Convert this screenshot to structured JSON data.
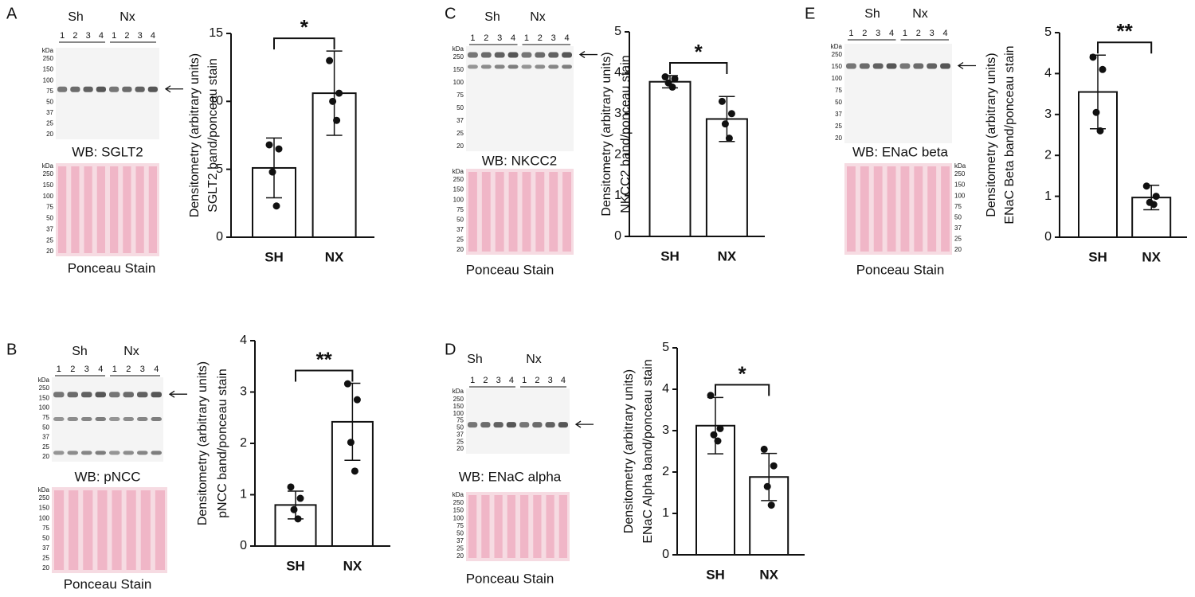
{
  "chart_data": [
    {
      "type": "bar",
      "ylabel": [
        "Densitometry (arbitrary units)",
        "SGLT2 band/ponceau stain"
      ],
      "categories": [
        "SH",
        "NX"
      ],
      "values": [
        5.1,
        10.6
      ],
      "errors": [
        2.2,
        3.1
      ],
      "points": [
        [
          6.8,
          6.5,
          4.8,
          2.3
        ],
        [
          13.0,
          10.6,
          10.0,
          8.6
        ]
      ],
      "significance": "*",
      "color": "#ffffff",
      "ylim": [
        0,
        15
      ],
      "yticks": [
        0,
        5,
        10,
        15
      ]
    },
    {
      "type": "bar",
      "ylabel": [
        "Densitometry (arbitrary units)",
        "pNCC band/ponceau stain"
      ],
      "categories": [
        "SH",
        "NX"
      ],
      "values": [
        0.8,
        2.42
      ],
      "errors": [
        0.27,
        0.75
      ],
      "points": [
        [
          1.15,
          0.93,
          0.71,
          0.53
        ],
        [
          3.16,
          2.85,
          2.02,
          1.46
        ]
      ],
      "significance": "**",
      "color": "#ffffff",
      "ylim": [
        0,
        4
      ],
      "yticks": [
        0,
        1,
        2,
        3,
        4
      ]
    },
    {
      "type": "bar",
      "ylabel": [
        "Densitometry (arbitrary units)",
        "NKCC2 band/ponceau stain"
      ],
      "categories": [
        "SH",
        "NX"
      ],
      "values": [
        3.78,
        2.87
      ],
      "errors": [
        0.15,
        0.55
      ],
      "points": [
        [
          3.9,
          3.85,
          3.75,
          3.65
        ],
        [
          3.3,
          3.0,
          2.75,
          2.4
        ]
      ],
      "significance": "*",
      "color": "#ffffff",
      "ylim": [
        0,
        5
      ],
      "yticks": [
        0,
        1,
        2,
        3,
        4,
        5
      ]
    },
    {
      "type": "bar",
      "ylabel": [
        "Densitometry (arbitrary units)",
        "ENaC Alpha  band/ponceau stain"
      ],
      "categories": [
        "SH",
        "NX"
      ],
      "values": [
        3.12,
        1.88
      ],
      "errors": [
        0.68,
        0.57
      ],
      "points": [
        [
          3.85,
          3.05,
          2.9,
          2.75
        ],
        [
          2.55,
          2.15,
          1.65,
          1.2
        ]
      ],
      "significance": "*",
      "color": "#ffffff",
      "ylim": [
        0,
        5
      ],
      "yticks": [
        0,
        1,
        2,
        3,
        4,
        5
      ]
    },
    {
      "type": "bar",
      "ylabel": [
        "Densitometry (arbitrary units)",
        "ENaC Beta  band/ponceau stain"
      ],
      "categories": [
        "SH",
        "NX"
      ],
      "values": [
        3.55,
        0.97
      ],
      "errors": [
        0.9,
        0.3
      ],
      "points": [
        [
          4.4,
          4.1,
          3.05,
          2.6
        ],
        [
          1.25,
          1.0,
          0.85,
          0.8
        ]
      ],
      "significance": "**",
      "color": "#ffffff",
      "ylim": [
        0,
        5
      ],
      "yticks": [
        0,
        1,
        2,
        3,
        4,
        5
      ]
    }
  ],
  "blots": [
    {
      "panel": "A",
      "groups": [
        "Sh",
        "Nx"
      ],
      "lanes": [
        "1",
        "2",
        "3",
        "4",
        "1",
        "2",
        "3",
        "4"
      ],
      "kda": "kDa",
      "markers": [
        "250",
        "150",
        "100",
        "75",
        "50",
        "37",
        "25",
        "20"
      ],
      "wb": "WB: SGLT2",
      "ponceau_kda": "kDa",
      "ponceau_markers": [
        "250",
        "150",
        "100",
        "75",
        "50",
        "37",
        "25",
        "20"
      ],
      "ponceau": "Ponceau Stain"
    },
    {
      "panel": "B",
      "groups": [
        "Sh",
        "Nx"
      ],
      "lanes": [
        "1",
        "2",
        "3",
        "4",
        "1",
        "2",
        "3",
        "4"
      ],
      "kda": "kDa",
      "markers": [
        "250",
        "150",
        "100",
        "75",
        "50",
        "37",
        "25",
        "20"
      ],
      "wb": "WB: pNCC",
      "ponceau_kda": "kDa",
      "ponceau_markers": [
        "250",
        "150",
        "100",
        "75",
        "50",
        "37",
        "25",
        "20"
      ],
      "ponceau": "Ponceau Stain"
    },
    {
      "panel": "C",
      "groups": [
        "Sh",
        "Nx"
      ],
      "lanes": [
        "1",
        "2",
        "3",
        "4",
        "1",
        "2",
        "3",
        "4"
      ],
      "kda": "kDa",
      "markers": [
        "250",
        "150",
        "100",
        "75",
        "50",
        "37",
        "25",
        "20"
      ],
      "wb": "WB: NKCC2",
      "ponceau_kda": "kDa",
      "ponceau_markers": [
        "250",
        "150",
        "100",
        "75",
        "50",
        "37",
        "25",
        "20"
      ],
      "ponceau": "Ponceau Stain"
    },
    {
      "panel": "D",
      "groups": [
        "Sh",
        "Nx"
      ],
      "lanes": [
        "1",
        "2",
        "3",
        "4",
        "1",
        "2",
        "3",
        "4"
      ],
      "kda": "kDa",
      "markers": [
        "250",
        "150",
        "100",
        "75",
        "50",
        "37",
        "25",
        "20"
      ],
      "wb": "WB: ENaC alpha",
      "ponceau_kda": "kDa",
      "ponceau_markers": [
        "250",
        "150",
        "100",
        "75",
        "50",
        "37",
        "25",
        "20"
      ],
      "ponceau": "Ponceau Stain"
    },
    {
      "panel": "E",
      "groups": [
        "Sh",
        "Nx"
      ],
      "lanes": [
        "1",
        "2",
        "3",
        "4",
        "1",
        "2",
        "3",
        "4"
      ],
      "kda": "kDa",
      "markers": [
        "250",
        "150",
        "100",
        "75",
        "50",
        "37",
        "25",
        "20"
      ],
      "wb": "WB: ENaC beta",
      "ponceau_kda": "kDa",
      "ponceau_markers": [
        "250",
        "150",
        "100",
        "75",
        "50",
        "37",
        "25",
        "20"
      ],
      "ponceau": "Ponceau Stain"
    }
  ]
}
